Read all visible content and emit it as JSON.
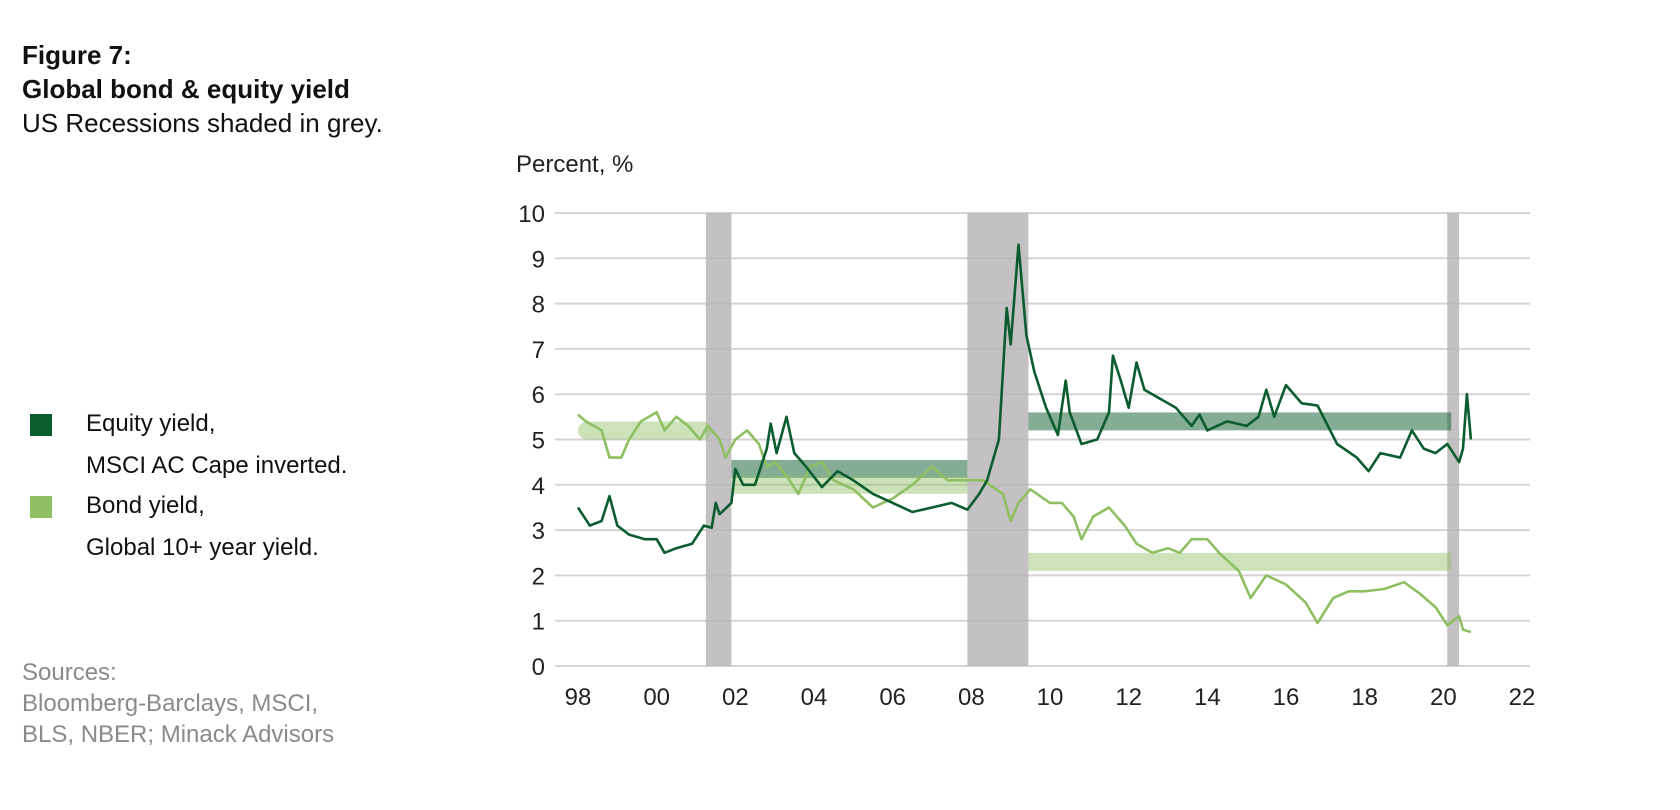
{
  "header": {
    "figure_label": "Figure 7:",
    "title": "Global bond & equity yield",
    "subtitle": "US Recessions shaded in grey."
  },
  "legend": [
    {
      "line1": "Equity yield,",
      "line2": "MSCI AC Cape inverted.",
      "color": "#0b5c2e"
    },
    {
      "line1": "Bond yield,",
      "line2": "Global 10+ year yield.",
      "color": "#8fbf63"
    }
  ],
  "sources": {
    "line1": "Sources:",
    "line2": "Bloomberg-Barclays, MSCI,",
    "line3": "BLS, NBER; Minack Advisors"
  },
  "chart_data": {
    "type": "line",
    "title": "Global bond & equity yield",
    "ylabel": "Percent, %",
    "xlabel": "",
    "ylim": [
      0,
      10
    ],
    "xlim": [
      1998,
      2022
    ],
    "yticks": [
      "0",
      "1",
      "2",
      "3",
      "4",
      "5",
      "6",
      "7",
      "8",
      "9",
      "10"
    ],
    "xticks": [
      {
        "year": 1998,
        "label": "98"
      },
      {
        "year": 2000,
        "label": "00"
      },
      {
        "year": 2002,
        "label": "02"
      },
      {
        "year": 2004,
        "label": "04"
      },
      {
        "year": 2006,
        "label": "06"
      },
      {
        "year": 2008,
        "label": "08"
      },
      {
        "year": 2010,
        "label": "10"
      },
      {
        "year": 2012,
        "label": "12"
      },
      {
        "year": 2014,
        "label": "14"
      },
      {
        "year": 2016,
        "label": "16"
      },
      {
        "year": 2018,
        "label": "18"
      },
      {
        "year": 2020,
        "label": "20"
      },
      {
        "year": 2022,
        "label": "22"
      }
    ],
    "grid": true,
    "recessions": [
      [
        2001.25,
        2001.9
      ],
      [
        2007.9,
        2009.45
      ],
      [
        2020.1,
        2020.4
      ]
    ],
    "averages": [
      {
        "series": "Equity yield",
        "from": 2001.9,
        "to": 2007.9,
        "value": 4.35,
        "color": "#0b5c2e"
      },
      {
        "series": "Equity yield",
        "from": 2009.45,
        "to": 2020.2,
        "value": 5.4,
        "color": "#0b5c2e"
      },
      {
        "series": "Bond yield",
        "from": 1998,
        "to": 2001.4,
        "value": 5.2,
        "color": "#8fbf63"
      },
      {
        "series": "Bond yield",
        "from": 2001.9,
        "to": 2007.9,
        "value": 4.0,
        "color": "#8fbf63"
      },
      {
        "series": "Bond yield",
        "from": 2009.45,
        "to": 2020.2,
        "value": 2.3,
        "color": "#8fbf63"
      }
    ],
    "series": [
      {
        "name": "Equity yield, MSCI AC Cape inverted",
        "color": "#0b5c2e",
        "x": [
          1998.0,
          1998.3,
          1998.6,
          1998.8,
          1999.0,
          1999.3,
          1999.7,
          2000.0,
          2000.2,
          2000.5,
          2000.9,
          2001.2,
          2001.4,
          2001.5,
          2001.6,
          2001.9,
          2002.0,
          2002.2,
          2002.5,
          2002.8,
          2002.9,
          2003.05,
          2003.3,
          2003.5,
          2003.8,
          2004.2,
          2004.6,
          2005.0,
          2005.5,
          2006.0,
          2006.5,
          2007.0,
          2007.5,
          2007.9,
          2008.2,
          2008.4,
          2008.7,
          2008.9,
          2009.0,
          2009.2,
          2009.4,
          2009.6,
          2009.9,
          2010.2,
          2010.4,
          2010.5,
          2010.8,
          2011.2,
          2011.5,
          2011.6,
          2011.8,
          2012.0,
          2012.2,
          2012.4,
          2012.8,
          2013.2,
          2013.6,
          2013.8,
          2014.0,
          2014.5,
          2015.0,
          2015.3,
          2015.5,
          2015.7,
          2016.0,
          2016.4,
          2016.8,
          2017.3,
          2017.8,
          2018.1,
          2018.4,
          2018.9,
          2019.2,
          2019.5,
          2019.8,
          2020.1,
          2020.4,
          2020.5,
          2020.6,
          2020.7
        ],
        "values": [
          3.5,
          3.1,
          3.2,
          3.75,
          3.1,
          2.9,
          2.8,
          2.8,
          2.5,
          2.6,
          2.7,
          3.1,
          3.05,
          3.6,
          3.35,
          3.6,
          4.35,
          4.0,
          4.0,
          4.8,
          5.35,
          4.7,
          5.5,
          4.7,
          4.4,
          3.95,
          4.3,
          4.1,
          3.8,
          3.6,
          3.4,
          3.5,
          3.6,
          3.45,
          3.8,
          4.1,
          5.0,
          7.9,
          7.1,
          9.3,
          7.3,
          6.5,
          5.7,
          5.1,
          6.3,
          5.6,
          4.9,
          5.0,
          5.6,
          6.85,
          6.3,
          5.7,
          6.7,
          6.1,
          5.9,
          5.7,
          5.3,
          5.55,
          5.2,
          5.4,
          5.3,
          5.5,
          6.1,
          5.5,
          6.2,
          5.8,
          5.75,
          4.9,
          4.6,
          4.3,
          4.7,
          4.6,
          5.2,
          4.8,
          4.7,
          4.9,
          4.5,
          4.8,
          6.0,
          5.0
        ]
      },
      {
        "name": "Bond yield, Global 10+ year yield",
        "color": "#8fbf63",
        "x": [
          1998.0,
          1998.2,
          1998.6,
          1998.8,
          1999.1,
          1999.3,
          1999.6,
          2000.0,
          2000.2,
          2000.5,
          2000.8,
          2001.1,
          2001.3,
          2001.6,
          2001.75,
          2002.0,
          2002.3,
          2002.6,
          2002.8,
          2003.0,
          2003.3,
          2003.6,
          2003.9,
          2004.2,
          2004.5,
          2005.0,
          2005.5,
          2006.0,
          2006.5,
          2007.0,
          2007.4,
          2007.9,
          2008.3,
          2008.8,
          2009.0,
          2009.2,
          2009.5,
          2010.0,
          2010.3,
          2010.6,
          2010.8,
          2011.1,
          2011.5,
          2011.9,
          2012.2,
          2012.6,
          2013.0,
          2013.3,
          2013.6,
          2014.0,
          2014.3,
          2014.8,
          2015.1,
          2015.5,
          2016.0,
          2016.5,
          2016.8,
          2017.2,
          2017.6,
          2018.0,
          2018.5,
          2019.0,
          2019.4,
          2019.8,
          2020.1,
          2020.4,
          2020.5,
          2020.7
        ],
        "values": [
          5.55,
          5.4,
          5.2,
          4.6,
          4.6,
          5.0,
          5.4,
          5.6,
          5.2,
          5.5,
          5.3,
          5.0,
          5.3,
          5.0,
          4.6,
          5.0,
          5.2,
          4.9,
          4.4,
          4.5,
          4.2,
          3.8,
          4.4,
          4.5,
          4.1,
          3.9,
          3.5,
          3.7,
          4.0,
          4.4,
          4.1,
          4.1,
          4.1,
          3.8,
          3.2,
          3.6,
          3.9,
          3.6,
          3.6,
          3.3,
          2.8,
          3.3,
          3.5,
          3.1,
          2.7,
          2.5,
          2.6,
          2.5,
          2.8,
          2.8,
          2.5,
          2.1,
          1.5,
          2.0,
          1.8,
          1.4,
          0.95,
          1.5,
          1.65,
          1.65,
          1.7,
          1.85,
          1.6,
          1.3,
          0.9,
          1.1,
          0.8,
          0.75
        ]
      }
    ]
  }
}
